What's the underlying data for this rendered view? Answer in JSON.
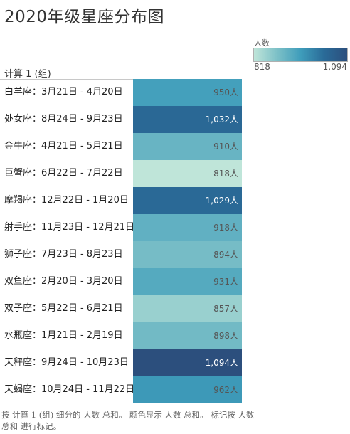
{
  "chart_data": {
    "type": "heatmap",
    "title": "2020年级星座分布图",
    "row_header": "计算 1 (组)",
    "legend": {
      "title": "人数",
      "min_label": "818",
      "max_label": "1,094",
      "placement": "top-right"
    },
    "color_min": 818,
    "color_max": 1094,
    "rows": [
      {
        "sign": "白羊座：3月21日 - 4月20日",
        "value": 950,
        "label": "950人"
      },
      {
        "sign": "处女座：8月24日 - 9月23日",
        "value": 1032,
        "label": "1,032人"
      },
      {
        "sign": "金牛座：4月21日 - 5月21日",
        "value": 910,
        "label": "910人"
      },
      {
        "sign": "巨蟹座：6月22日 - 7月22日",
        "value": 818,
        "label": "818人"
      },
      {
        "sign": "摩羯座：12月22日 - 1月20日",
        "value": 1029,
        "label": "1,029人"
      },
      {
        "sign": "射手座：11月23日 - 12月21日",
        "value": 918,
        "label": "918人"
      },
      {
        "sign": "狮子座：7月23日 - 8月23日",
        "value": 894,
        "label": "894人"
      },
      {
        "sign": "双鱼座：2月20日 - 3月20日",
        "value": 931,
        "label": "931人"
      },
      {
        "sign": "双子座：5月22日 - 6月21日",
        "value": 857,
        "label": "857人"
      },
      {
        "sign": "水瓶座：1月21日 - 2月19日",
        "value": 898,
        "label": "898人"
      },
      {
        "sign": "天秤座：9月24日 - 10月23日",
        "value": 1094,
        "label": "1,094人"
      },
      {
        "sign": "天蝎座：10月24日 - 11月22日",
        "value": 962,
        "label": "962人"
      }
    ]
  },
  "footnote": "按 计算 1 (组) 细分的 人数 总和。 颜色显示 人数 总和。 标记按 人数 总和 进行标记。",
  "colors": {
    "palette": [
      "#bfe5d9",
      "#7cc0c7",
      "#3f9dbb",
      "#2a6b98",
      "#2c4f7d"
    ],
    "light_text": "#555555",
    "dark_text": "#ffffff"
  }
}
